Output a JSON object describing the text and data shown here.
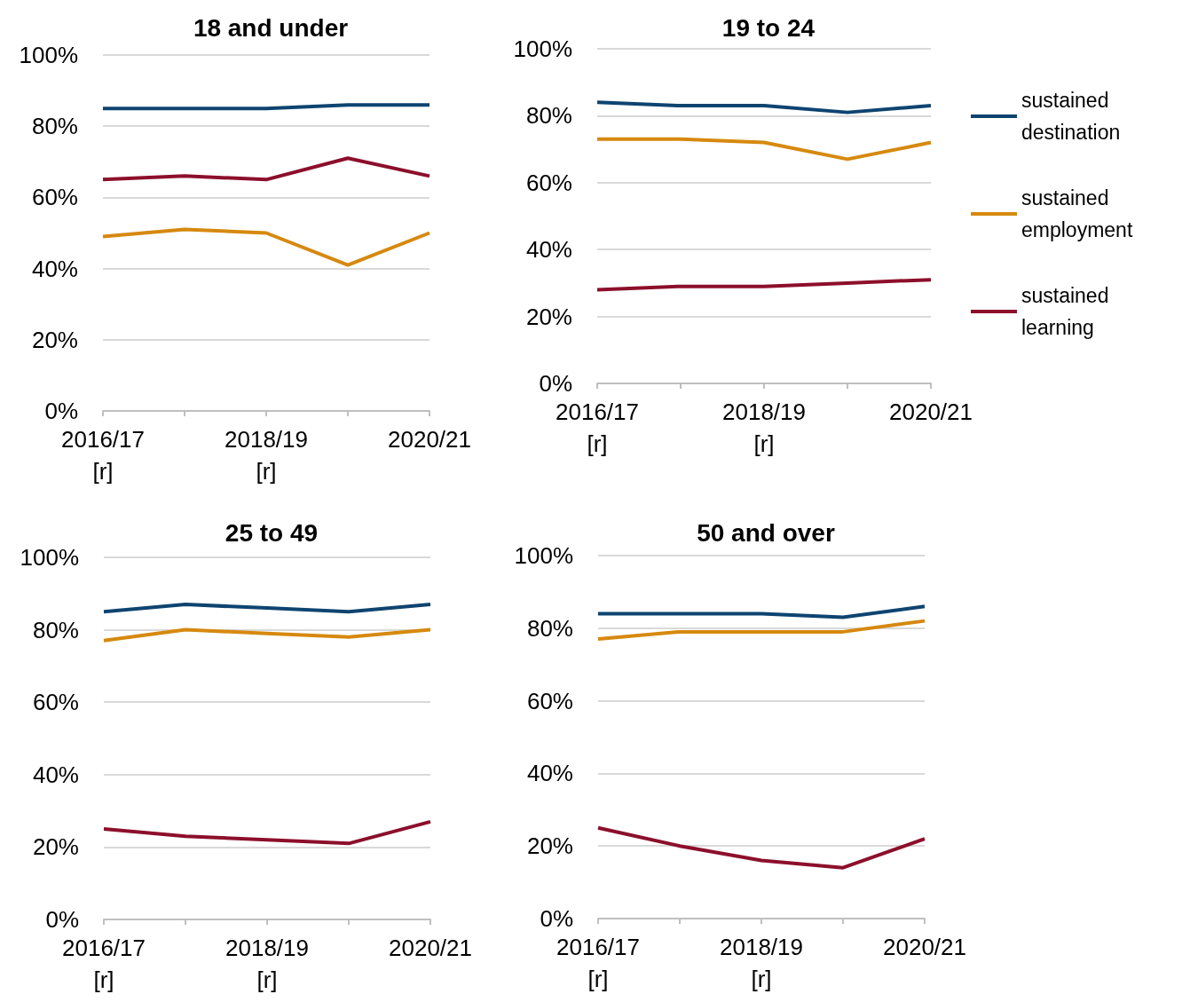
{
  "chart_data": [
    {
      "type": "line",
      "title": "18 and under",
      "categories": [
        "2016/17\n[r]",
        null,
        "2018/19\n[r]",
        null,
        "2020/21"
      ],
      "ylim": [
        0,
        100
      ],
      "yticks": [
        {
          "value": 0,
          "label": "0%"
        },
        {
          "value": 20,
          "label": "20%"
        },
        {
          "value": 40,
          "label": "40%"
        },
        {
          "value": 60,
          "label": "60%"
        },
        {
          "value": 80,
          "label": "80%"
        },
        {
          "value": 100,
          "label": "100%"
        }
      ],
      "grid": "y",
      "legend": false,
      "marker": "none",
      "series": [
        {
          "color": "#0e4470",
          "values": [
            85,
            85,
            85,
            86,
            86
          ]
        },
        {
          "color": "#d6890f",
          "values": [
            49,
            51,
            50,
            41,
            50
          ]
        },
        {
          "color": "#8c0f2b",
          "values": [
            65,
            66,
            65,
            71,
            66
          ]
        }
      ]
    },
    {
      "type": "line",
      "title": "19 to 24",
      "categories": [
        "2016/17\n[r]",
        null,
        "2018/19\n[r]",
        null,
        "2020/21"
      ],
      "ylim": [
        0,
        100
      ],
      "yticks": [
        {
          "value": 0,
          "label": "0%"
        },
        {
          "value": 20,
          "label": "20%"
        },
        {
          "value": 40,
          "label": "40%"
        },
        {
          "value": 60,
          "label": "60%"
        },
        {
          "value": 80,
          "label": "80%"
        },
        {
          "value": 100,
          "label": "100%"
        }
      ],
      "grid": "y",
      "legend": "right",
      "marker": "none",
      "series": [
        {
          "name": "sustained destination",
          "color": "#0e4470",
          "values": [
            84,
            83,
            83,
            81,
            83
          ]
        },
        {
          "name": "sustained employment",
          "color": "#d6890f",
          "values": [
            73,
            73,
            72,
            67,
            72
          ]
        },
        {
          "name": "sustained learning",
          "color": "#8c0f2b",
          "values": [
            28,
            29,
            29,
            30,
            31
          ]
        }
      ]
    },
    {
      "type": "line",
      "title": "25 to 49",
      "categories": [
        "2016/17\n[r]",
        null,
        "2018/19\n[r]",
        null,
        "2020/21"
      ],
      "ylim": [
        0,
        100
      ],
      "yticks": [
        {
          "value": 0,
          "label": "0%"
        },
        {
          "value": 20,
          "label": "20%"
        },
        {
          "value": 40,
          "label": "40%"
        },
        {
          "value": 60,
          "label": "60%"
        },
        {
          "value": 80,
          "label": "80%"
        },
        {
          "value": 100,
          "label": "100%"
        }
      ],
      "grid": "y",
      "legend": false,
      "marker": "none",
      "series": [
        {
          "color": "#0e4470",
          "values": [
            85,
            87,
            86,
            85,
            87
          ]
        },
        {
          "color": "#d6890f",
          "values": [
            77,
            80,
            79,
            78,
            80
          ]
        },
        {
          "color": "#8c0f2b",
          "values": [
            25,
            23,
            22,
            21,
            27
          ]
        }
      ]
    },
    {
      "type": "line",
      "title": "50 and over",
      "categories": [
        "2016/17\n[r]",
        null,
        "2018/19\n[r]",
        null,
        "2020/21"
      ],
      "ylim": [
        0,
        100
      ],
      "yticks": [
        {
          "value": 0,
          "label": "0%"
        },
        {
          "value": 20,
          "label": "20%"
        },
        {
          "value": 40,
          "label": "40%"
        },
        {
          "value": 60,
          "label": "60%"
        },
        {
          "value": 80,
          "label": "80%"
        },
        {
          "value": 100,
          "label": "100%"
        }
      ],
      "grid": "y",
      "legend": false,
      "marker": "none",
      "series": [
        {
          "color": "#0e4470",
          "values": [
            84,
            84,
            84,
            83,
            86
          ]
        },
        {
          "color": "#d6890f",
          "values": [
            77,
            79,
            79,
            79,
            82
          ]
        },
        {
          "color": "#8c0f2b",
          "values": [
            25,
            20,
            16,
            14,
            22
          ]
        }
      ]
    }
  ]
}
